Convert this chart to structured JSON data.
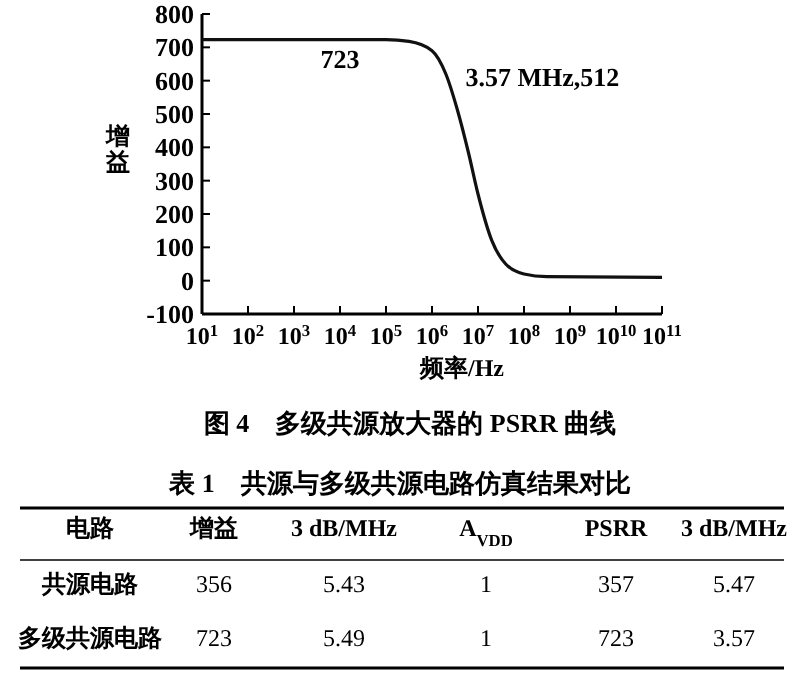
{
  "chart_data": [
    {
      "type": "line",
      "title": "图 4　多级共源放大器的 PSRR 曲线",
      "xlabel": "频率/Hz",
      "ylabel": "增益",
      "log": "x",
      "xlim": [
        10,
        100000000000
      ],
      "ylim": [
        -100,
        800
      ],
      "xticks": [
        {
          "value": 10,
          "label": "10$^{1}$"
        },
        {
          "value": 100,
          "label": "10$^{2}$"
        },
        {
          "value": 1000,
          "label": "10$^{3}$"
        },
        {
          "value": 10000,
          "label": "10$^{4}$"
        },
        {
          "value": 100000,
          "label": "10$^{5}$"
        },
        {
          "value": 1000000,
          "label": "10$^{6}$"
        },
        {
          "value": 10000000,
          "label": "10$^{7}$"
        },
        {
          "value": 100000000,
          "label": "10$^{8}$"
        },
        {
          "value": 1000000000,
          "label": "10$^{9}$"
        },
        {
          "value": 10000000000,
          "label": "10$^{10}$"
        },
        {
          "value": 100000000000,
          "label": "10$^{11}$"
        }
      ],
      "yticks": [
        -100,
        0,
        100,
        200,
        300,
        400,
        500,
        600,
        700,
        800
      ],
      "series": [
        {
          "color": "#111111",
          "x": [
            10,
            1000,
            100000,
            316000,
            1000000,
            2000000,
            3570000,
            6300000,
            10000000,
            20000000,
            40000000,
            100000000,
            316000000,
            100000000000
          ],
          "values": [
            723,
            723,
            723,
            718,
            690,
            620,
            512,
            380,
            260,
            120,
            50,
            20,
            12,
            10
          ]
        }
      ],
      "annotations": [
        {
          "text": "723",
          "x": 10000,
          "y": 723
        },
        {
          "text": "3.57 MHz,512",
          "x": 3570000,
          "y": 512
        }
      ]
    },
    {
      "type": "other",
      "title": "表 1　共源与多级共源电路仿真结果对比",
      "annotations": [
        "电路",
        "增益",
        "3 dB/MHz",
        "A$_{VDD}$",
        "PSRR",
        "3 dB/MHz",
        "共源电路",
        "356",
        "5.43",
        "1",
        "357",
        "5.47",
        "多级共源电路",
        "723",
        "5.49",
        "1",
        "723",
        "3.57"
      ]
    }
  ]
}
